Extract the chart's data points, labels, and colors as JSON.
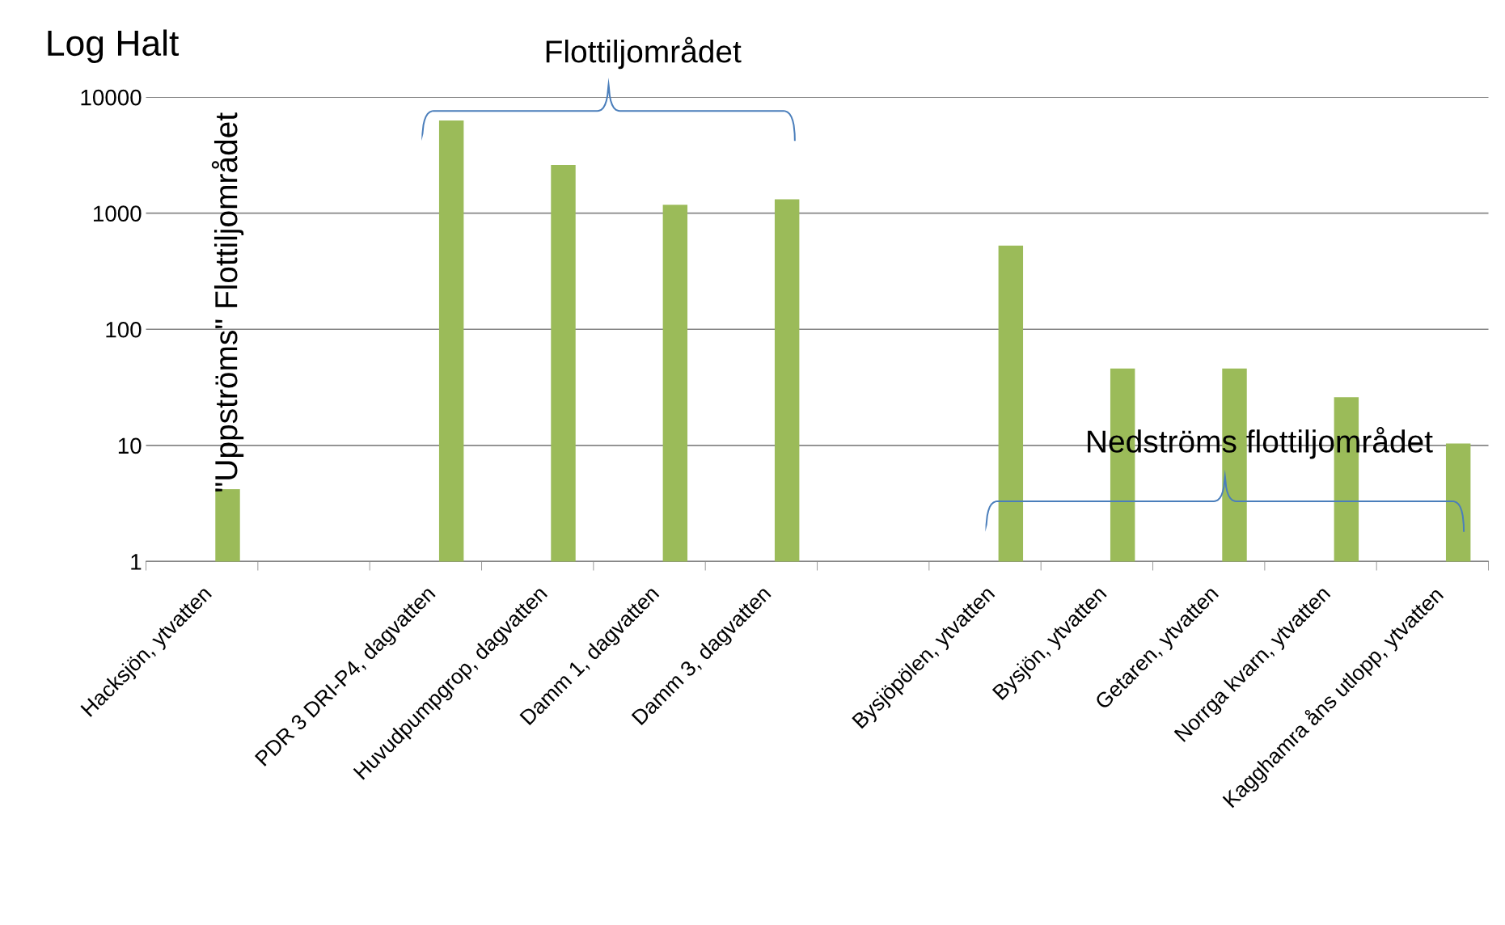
{
  "chart_data": {
    "type": "bar",
    "ylabel": "Log Halt",
    "log": true,
    "ylim": [
      1,
      10000
    ],
    "yticks": [
      1,
      10,
      100,
      1000,
      10000
    ],
    "grid": "y",
    "color": "#9bbb59",
    "categories": [
      "Hacksjön, ytvatten",
      null,
      "PDR 3 DRI-P4, dagvatten",
      "Huvudpumpgrop, dagvatten",
      "Damm 1, dagvatten",
      "Damm 3, dagvatten",
      null,
      "Bysjöpölen, ytvatten",
      "Bysjön, ytvatten",
      "Getaren, ytvatten",
      "Norrga kvarn, ytvatten",
      "Kagghamra åns utlopp, ytvatten"
    ],
    "values": [
      4.2,
      null,
      6300,
      2600,
      1180,
      1320,
      null,
      525,
      46,
      46,
      26,
      10.4
    ],
    "annotations": [
      "Flottiljområdet",
      "\"Uppströms\" Flottiljområdet",
      "Nedströms flottiljområdet"
    ]
  }
}
